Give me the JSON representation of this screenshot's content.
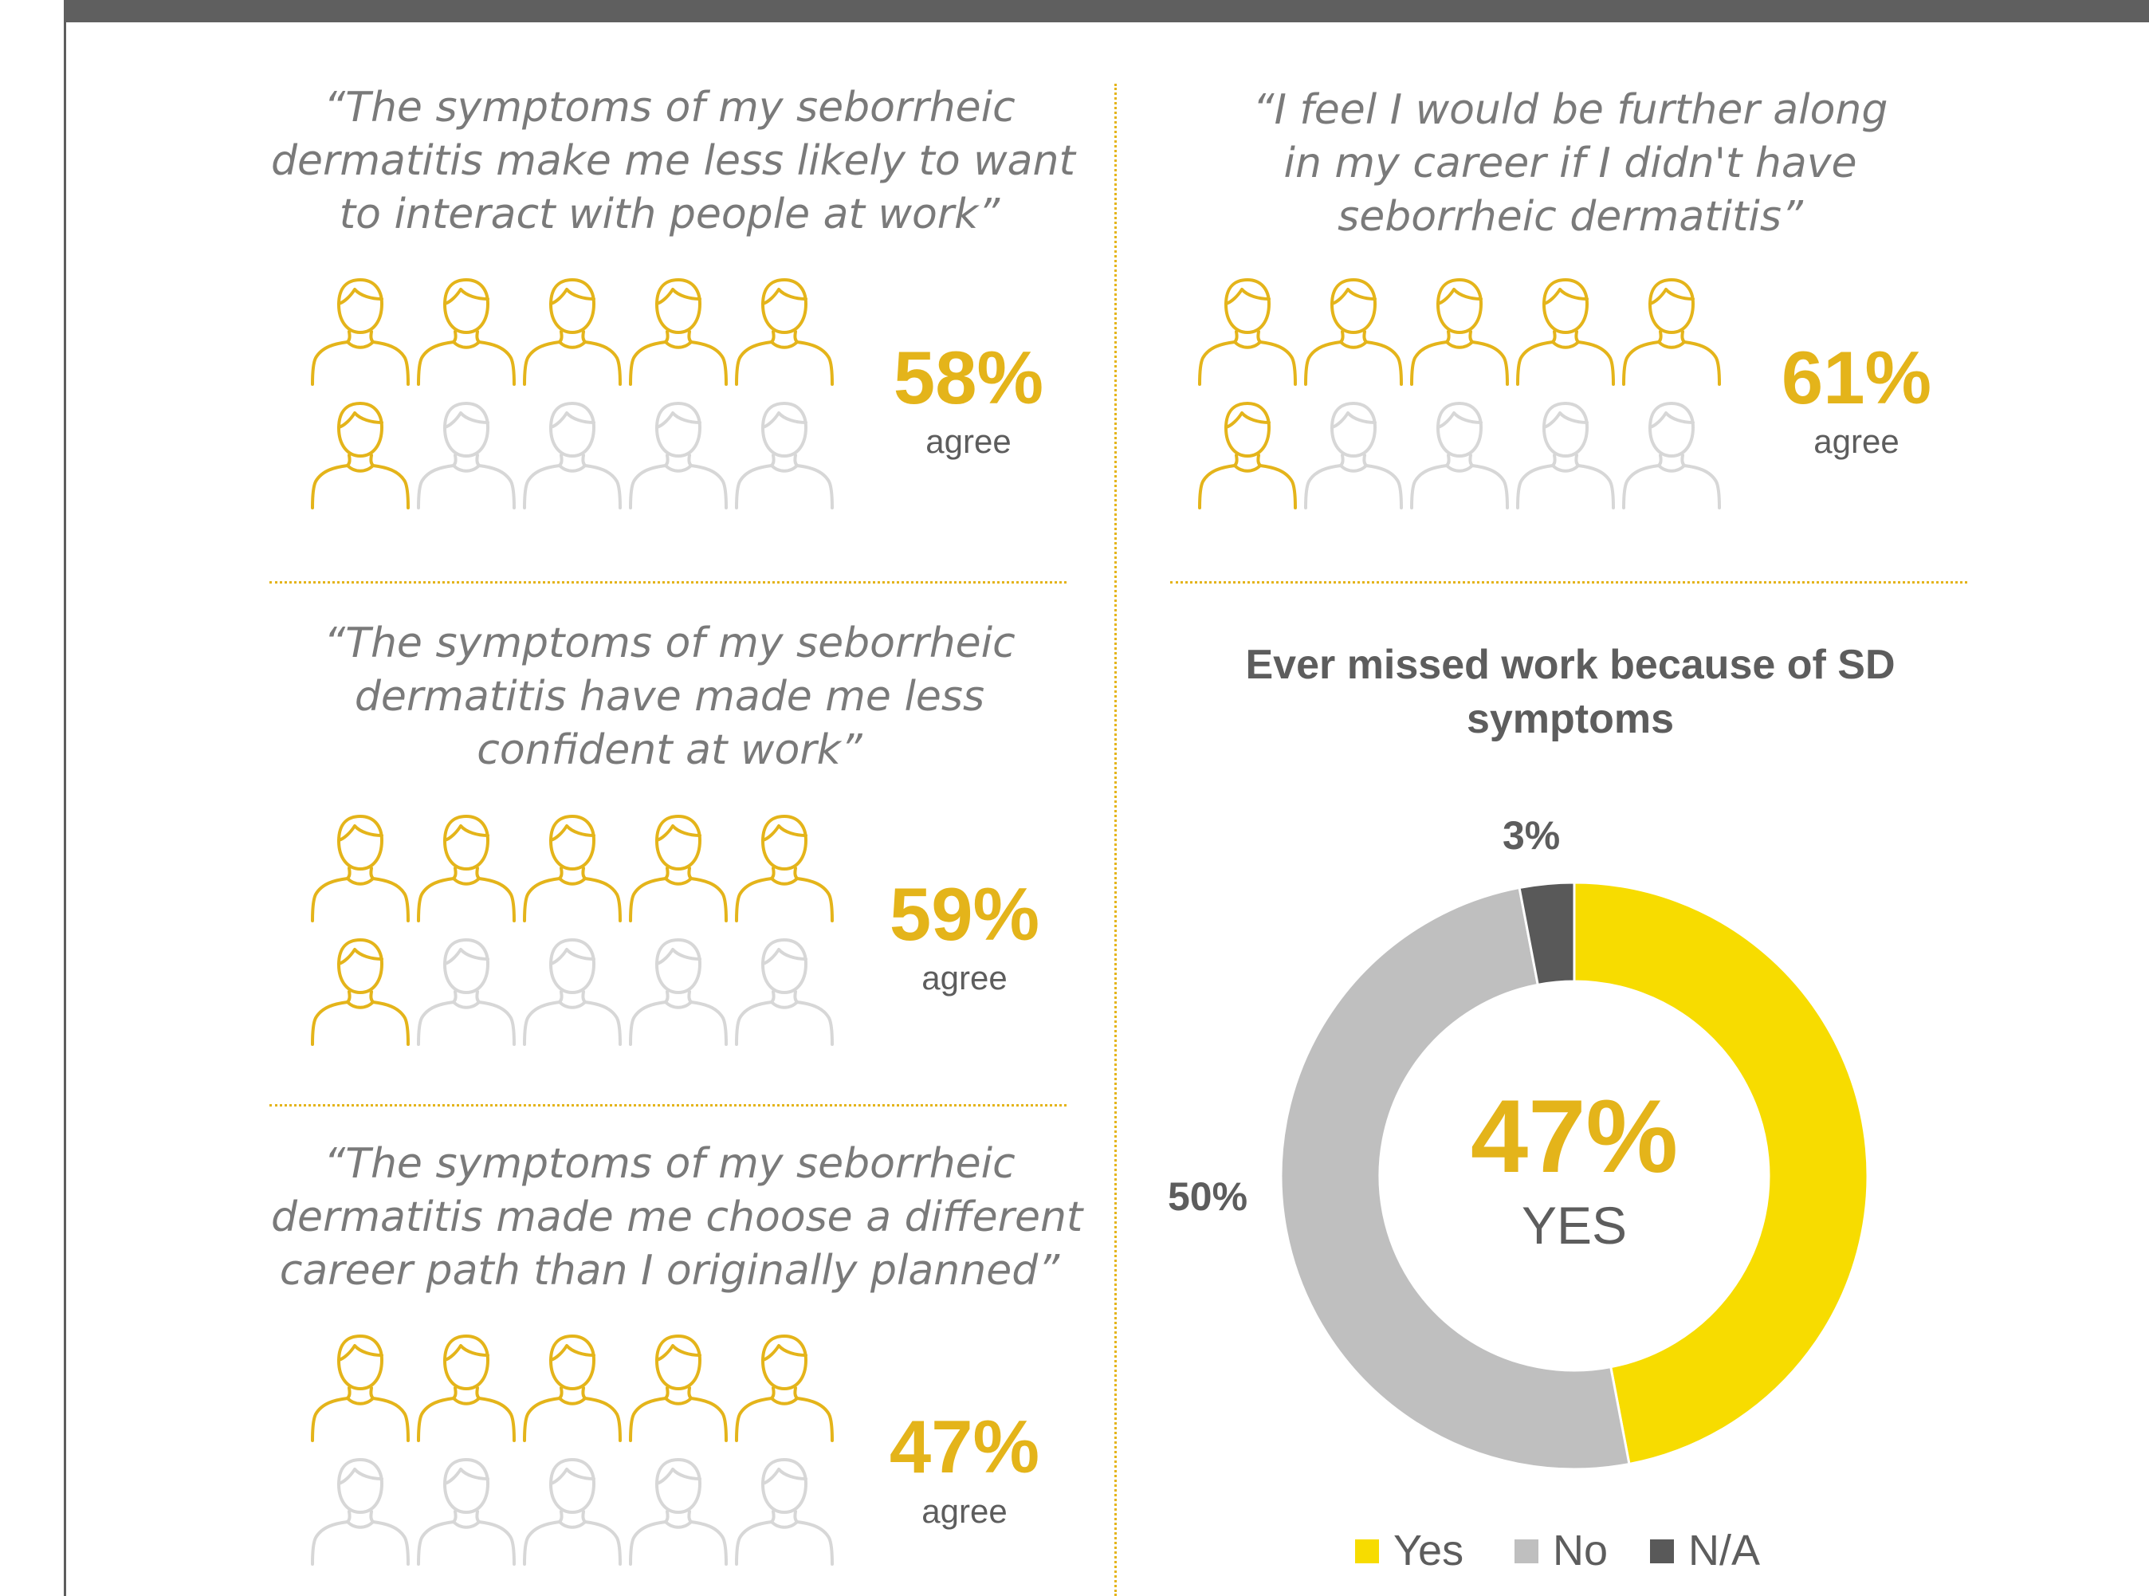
{
  "colors": {
    "accent": "#e4b41a",
    "inactive": "#d7d7d7",
    "yes": "#f7dc00",
    "no": "#bfbfbf",
    "na": "#595959",
    "text": "#5d5d5d"
  },
  "icons": {
    "person": "person-outline-icon"
  },
  "statements": [
    {
      "quote": "“The symptoms of my seborrheic dermatitis make me less likely to want to interact with people at work”",
      "lines": [
        "“The symptoms of my seborrheic",
        "dermatitis make me less likely to want",
        "to interact with people at work”"
      ],
      "percent": "58%",
      "agree_label": "agree",
      "value": 58,
      "highlighted_icons": 6,
      "total_icons": 10
    },
    {
      "quote": "“I feel I would be further along in my career if I didn't have seborrheic dermatitis”",
      "lines": [
        "“I feel I would be further along",
        "in my career if I didn't have",
        "seborrheic dermatitis”"
      ],
      "percent": "61%",
      "agree_label": "agree",
      "value": 61,
      "highlighted_icons": 6,
      "total_icons": 10
    },
    {
      "quote": "“The symptoms of my seborrheic dermatitis have made me less confident at work”",
      "lines": [
        "“The symptoms of my seborrheic",
        "dermatitis have made me less",
        "confident at work”"
      ],
      "percent": "59%",
      "agree_label": "agree",
      "value": 59,
      "highlighted_icons": 6,
      "total_icons": 10
    },
    {
      "quote": "“The symptoms of my seborrheic dermatitis made me choose a different career path than I originally planned”",
      "lines": [
        "“The symptoms of my seborrheic",
        "dermatitis made me choose a different",
        "career path than I originally planned”"
      ],
      "percent": "47%",
      "agree_label": "agree",
      "value": 47,
      "highlighted_icons": 5,
      "total_icons": 10
    }
  ],
  "chart_data": {
    "type": "pie",
    "title": "Ever missed work because of SD symptoms",
    "title_lines": [
      "Ever missed work because of SD",
      "symptoms"
    ],
    "categories": [
      "Yes",
      "No",
      "N/A"
    ],
    "values": [
      47,
      50,
      3
    ],
    "value_labels": [
      "47%",
      "50%",
      "3%"
    ],
    "colors": [
      "#f7dc00",
      "#bfbfbf",
      "#595959"
    ],
    "center_value": "47%",
    "center_label": "YES",
    "legend_position": "bottom"
  }
}
